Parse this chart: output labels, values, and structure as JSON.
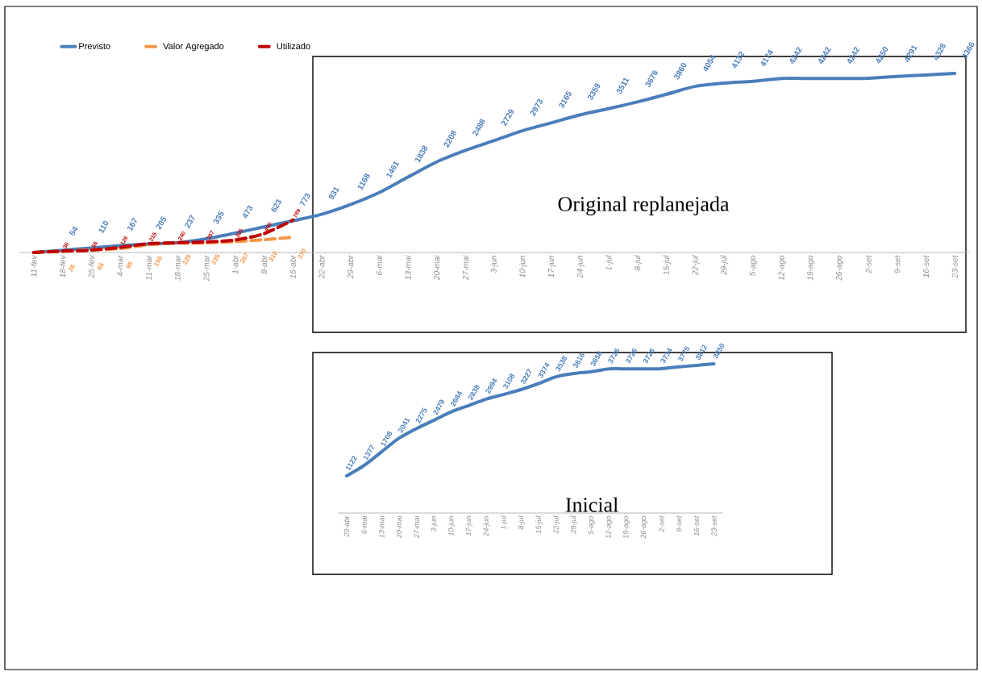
{
  "chart_data": [
    {
      "type": "line",
      "annotations": [
        "Original replanejada"
      ],
      "categories": [
        "11-fev",
        "18-fev",
        "25-fev",
        "4-mar",
        "11-mar",
        "18-mar",
        "25-mar",
        "1-abr",
        "8-abr",
        "15-abr",
        "22-abr",
        "29-abr",
        "6-mai",
        "13-mai",
        "20-mai",
        "27-mai",
        "3-jun",
        "10-jun",
        "17-jun",
        "24-jun",
        "1-jul",
        "8-jul",
        "15-jul",
        "22-jul",
        "29-jul",
        "5-ago",
        "12-ago",
        "19-ago",
        "26-ago",
        "2-set",
        "9-set",
        "16-set",
        "23-set"
      ],
      "series": [
        {
          "name": "Previsto",
          "color": "#4a7ebb",
          "line_style": "solid",
          "values": [
            0,
            54,
            110,
            167,
            205,
            237,
            335,
            473,
            623,
            773,
            931,
            1168,
            1461,
            1838,
            2208,
            2488,
            2729,
            2973,
            3165,
            3359,
            3511,
            3676,
            3860,
            4054,
            4132,
            4174,
            4242,
            4242,
            4242,
            4250,
            4291,
            4328,
            4366
          ],
          "value_labels": [
            null,
            "54",
            "110",
            "167",
            "205",
            "237",
            "335",
            "473",
            "623",
            "773",
            "931",
            "1168",
            "1461",
            "1838",
            "2208",
            "2488",
            "2729",
            "2973",
            "3165",
            "3359",
            "3511",
            "3676",
            "3860",
            "4054",
            "4132",
            "4174",
            "4242",
            "4242",
            "4242",
            "4250",
            "4291",
            "4328",
            "4366"
          ]
        },
        {
          "name": "Valor Agregado",
          "color": "#f79646",
          "line_style": "dashed",
          "values": [
            0,
            26,
            66,
            95,
            190,
            229,
            235,
            267,
            310,
            370,
            null,
            null,
            null,
            null,
            null,
            null,
            null,
            null,
            null,
            null,
            null,
            null,
            null,
            null,
            null,
            null,
            null,
            null,
            null,
            null,
            null,
            null,
            null
          ],
          "value_labels": [
            null,
            "26",
            "66",
            "95",
            "190",
            "229",
            "235",
            "267",
            "310",
            "370",
            null,
            null,
            null,
            null,
            null,
            null,
            null,
            null,
            null,
            null,
            null,
            null,
            null,
            null,
            null,
            null,
            null,
            null,
            null,
            null,
            null,
            null,
            null
          ]
        },
        {
          "name": "Utilizado",
          "color": "#c00000",
          "line_style": "dashed",
          "values": [
            0,
            36,
            56,
            126,
            215,
            240,
            257,
            305,
            460,
            789,
            null,
            null,
            null,
            null,
            null,
            null,
            null,
            null,
            null,
            null,
            null,
            null,
            null,
            null,
            null,
            null,
            null,
            null,
            null,
            null,
            null,
            null,
            null
          ],
          "value_labels": [
            null,
            "36",
            "56",
            "126",
            "215",
            "240",
            "257",
            "305",
            "460",
            "789",
            null,
            null,
            null,
            null,
            null,
            null,
            null,
            null,
            null,
            null,
            null,
            null,
            null,
            null,
            null,
            null,
            null,
            null,
            null,
            null,
            null,
            null,
            null
          ]
        }
      ],
      "tick_labels": "x",
      "legend": "top left",
      "grid": false,
      "marker": "none"
    },
    {
      "type": "line",
      "title": "Inicial",
      "categories": [
        "29-abr",
        "6-mai",
        "13-mai",
        "20-mai",
        "27-mai",
        "3-jun",
        "10-jun",
        "17-jun",
        "24-jun",
        "1-jul",
        "8-jul",
        "15-jul",
        "22-jul",
        "29-jul",
        "5-ago",
        "12-ago",
        "19-ago",
        "26-ago",
        "2-set",
        "9-set",
        "16-set",
        "23-set"
      ],
      "series": [
        {
          "color": "#4a7ebb",
          "line_style": "solid",
          "values": [
            1122,
            1377,
            1708,
            2041,
            2275,
            2479,
            2684,
            2838,
            2994,
            3108,
            3227,
            3374,
            3538,
            3616,
            3658,
            3726,
            3726,
            3726,
            3734,
            3775,
            3812,
            3850
          ]
        }
      ],
      "tick_labels": "x",
      "data_labels": true,
      "legend": false,
      "grid": false,
      "marker": "none"
    }
  ]
}
